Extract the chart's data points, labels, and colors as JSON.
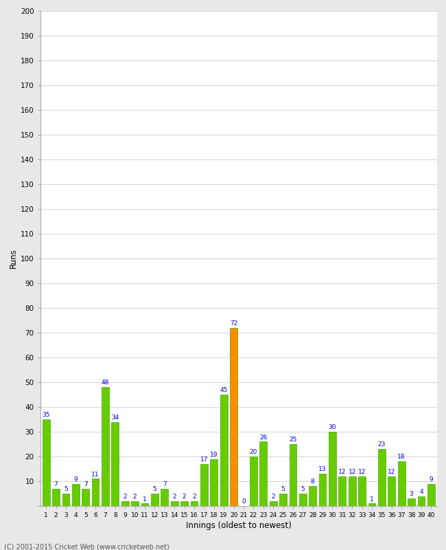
{
  "innings": [
    1,
    2,
    3,
    4,
    5,
    6,
    7,
    8,
    9,
    10,
    11,
    12,
    13,
    14,
    15,
    16,
    17,
    18,
    19,
    20,
    21,
    22,
    23,
    24,
    25,
    26,
    27,
    28,
    29,
    30,
    31,
    32,
    33,
    34,
    35,
    36,
    37,
    38,
    39,
    40
  ],
  "runs": [
    35,
    7,
    5,
    9,
    7,
    11,
    48,
    34,
    2,
    2,
    1,
    5,
    7,
    2,
    2,
    2,
    17,
    19,
    45,
    72,
    0,
    20,
    26,
    2,
    5,
    25,
    5,
    8,
    13,
    30,
    12,
    12,
    12,
    1,
    23,
    12,
    18,
    3,
    4,
    9
  ],
  "colors": [
    "#66cc00",
    "#66cc00",
    "#66cc00",
    "#66cc00",
    "#66cc00",
    "#66cc00",
    "#66cc00",
    "#66cc00",
    "#66cc00",
    "#66cc00",
    "#66cc00",
    "#66cc00",
    "#66cc00",
    "#66cc00",
    "#66cc00",
    "#66cc00",
    "#66cc00",
    "#66cc00",
    "#66cc00",
    "#ff8c00",
    "#66cc00",
    "#66cc00",
    "#66cc00",
    "#66cc00",
    "#66cc00",
    "#66cc00",
    "#66cc00",
    "#66cc00",
    "#66cc00",
    "#66cc00",
    "#66cc00",
    "#66cc00",
    "#66cc00",
    "#66cc00",
    "#66cc00",
    "#66cc00",
    "#66cc00",
    "#66cc00",
    "#66cc00",
    "#66cc00"
  ],
  "ylabel": "Runs",
  "xlabel": "Innings (oldest to newest)",
  "ylim": [
    0,
    200
  ],
  "yticks": [
    0,
    10,
    20,
    30,
    40,
    50,
    60,
    70,
    80,
    90,
    100,
    110,
    120,
    130,
    140,
    150,
    160,
    170,
    180,
    190,
    200
  ],
  "bg_color": "#e8e8e8",
  "plot_bg": "#ffffff",
  "label_color": "#0000cc",
  "label_fontsize": 6.5,
  "bar_edge_color": "#44aa00",
  "footer": "(C) 2001-2015 Cricket Web (www.cricketweb.net)"
}
